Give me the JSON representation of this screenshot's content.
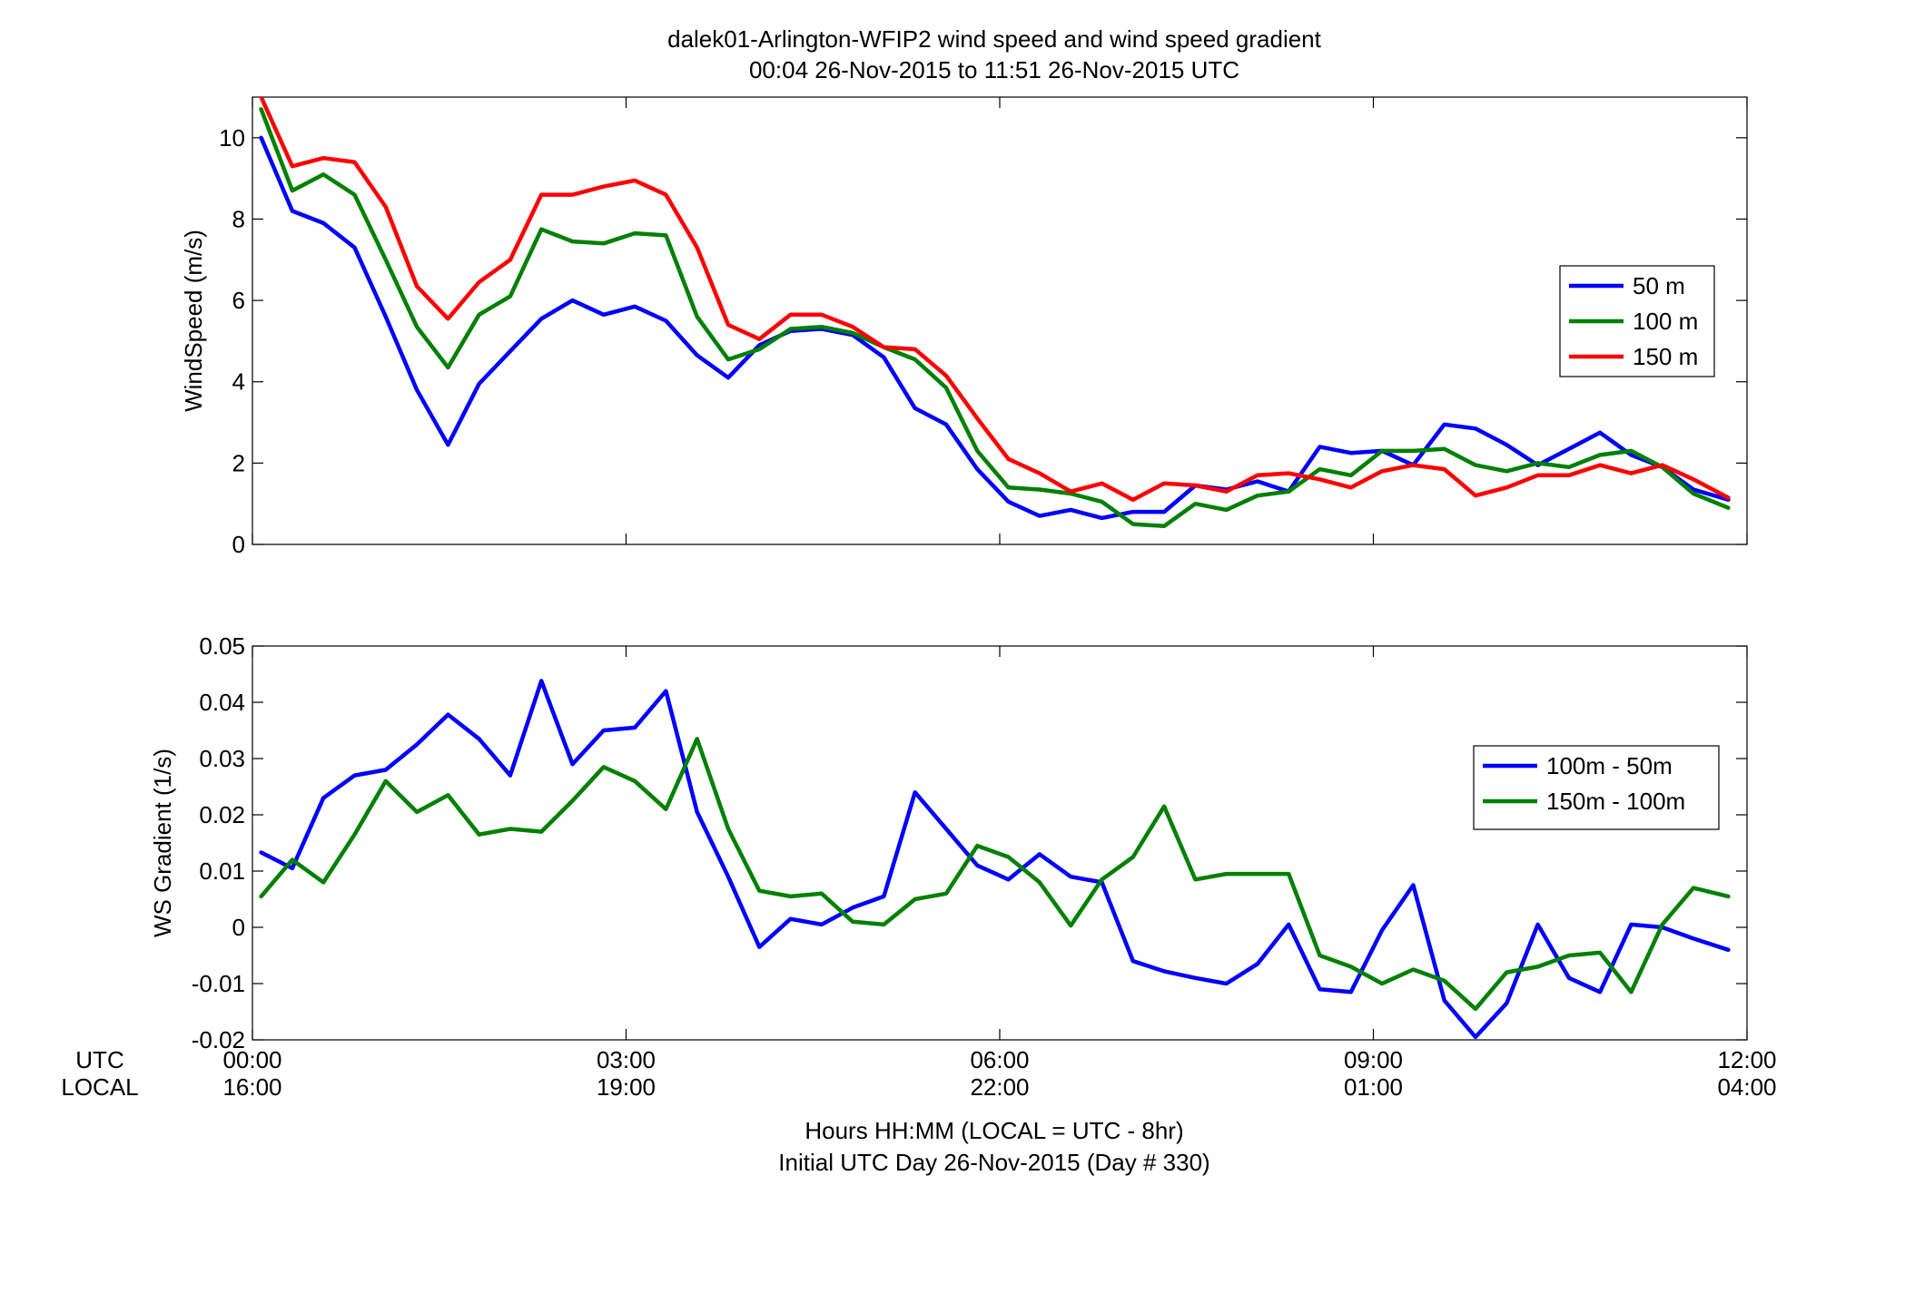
{
  "figure": {
    "title_line1": "dalek01-Arlington-WFIP2  wind speed and wind speed gradient",
    "title_line2": "00:04 26-Nov-2015 to 11:51 26-Nov-2015  UTC",
    "xlabel_line1": "Hours HH:MM  (LOCAL = UTC - 8hr)",
    "xlabel_line2": "Initial UTC Day 26-Nov-2015 (Day # 330)",
    "row_label_utc": "UTC",
    "row_label_local": "LOCAL",
    "x_ticks_utc": [
      "00:00",
      "03:00",
      "06:00",
      "09:00",
      "12:00"
    ],
    "x_ticks_local": [
      "16:00",
      "19:00",
      "22:00",
      "01:00",
      "04:00"
    ]
  },
  "chart_data": [
    {
      "type": "line",
      "title": "",
      "xlabel": "",
      "ylabel": "WindSpeed (m/s)",
      "xlim": [
        0,
        12
      ],
      "ylim": [
        0,
        11
      ],
      "yticks": [
        0,
        2,
        4,
        6,
        8,
        10
      ],
      "ytick_labels": [
        "0",
        "2",
        "4",
        "6",
        "8",
        "10"
      ],
      "grid": false,
      "legend": "right",
      "x": [
        0.07,
        0.32,
        0.57,
        0.82,
        1.07,
        1.32,
        1.57,
        1.82,
        2.07,
        2.32,
        2.57,
        2.82,
        3.07,
        3.32,
        3.57,
        3.82,
        4.07,
        4.32,
        4.57,
        4.82,
        5.07,
        5.32,
        5.57,
        5.82,
        6.07,
        6.32,
        6.57,
        6.82,
        7.07,
        7.32,
        7.57,
        7.82,
        8.07,
        8.32,
        8.57,
        8.82,
        9.07,
        9.32,
        9.57,
        9.82,
        10.07,
        10.32,
        10.57,
        10.82,
        11.07,
        11.32,
        11.57,
        11.85
      ],
      "series": [
        {
          "name": "50 m",
          "color": "#0000ff",
          "values": [
            10.0,
            8.2,
            7.9,
            7.3,
            5.6,
            3.8,
            2.45,
            3.95,
            4.75,
            5.55,
            6.0,
            5.65,
            5.85,
            5.5,
            4.65,
            4.1,
            4.9,
            5.25,
            5.3,
            5.15,
            4.6,
            3.35,
            2.95,
            1.85,
            1.05,
            0.7,
            0.85,
            0.65,
            0.8,
            0.8,
            1.45,
            1.35,
            1.55,
            1.3,
            2.4,
            2.25,
            2.3,
            1.95,
            2.95,
            2.85,
            2.45,
            1.95,
            2.35,
            2.75,
            2.2,
            1.9,
            1.35,
            1.1
          ]
        },
        {
          "name": "100 m",
          "color": "#008000",
          "values": [
            10.7,
            8.7,
            9.1,
            8.6,
            7.0,
            5.35,
            4.35,
            5.65,
            6.1,
            7.75,
            7.45,
            7.4,
            7.65,
            7.6,
            5.6,
            4.55,
            4.8,
            5.3,
            5.35,
            5.2,
            4.85,
            4.55,
            3.85,
            2.3,
            1.4,
            1.35,
            1.25,
            1.05,
            0.5,
            0.45,
            1.0,
            0.85,
            1.2,
            1.3,
            1.85,
            1.7,
            2.3,
            2.3,
            2.35,
            1.95,
            1.8,
            2.0,
            1.9,
            2.2,
            2.3,
            1.9,
            1.25,
            0.9
          ]
        },
        {
          "name": "150 m",
          "color": "#ff0000",
          "values": [
            11.0,
            9.3,
            9.5,
            9.4,
            8.3,
            6.35,
            5.55,
            6.45,
            7.0,
            8.6,
            8.6,
            8.8,
            8.95,
            8.6,
            7.3,
            5.4,
            5.05,
            5.65,
            5.65,
            5.35,
            4.85,
            4.8,
            4.15,
            3.1,
            2.1,
            1.75,
            1.3,
            1.5,
            1.1,
            1.5,
            1.45,
            1.3,
            1.7,
            1.75,
            1.6,
            1.4,
            1.8,
            1.95,
            1.85,
            1.2,
            1.4,
            1.7,
            1.7,
            1.95,
            1.75,
            1.95,
            1.6,
            1.15
          ]
        }
      ]
    },
    {
      "type": "line",
      "title": "",
      "xlabel": "",
      "ylabel": "WS Gradient (1/s)",
      "xlim": [
        0,
        12
      ],
      "ylim": [
        -0.02,
        0.05
      ],
      "yticks": [
        -0.02,
        -0.01,
        0,
        0.01,
        0.02,
        0.03,
        0.04,
        0.05
      ],
      "ytick_labels": [
        "-0.02",
        "-0.01",
        "0",
        "0.01",
        "0.02",
        "0.03",
        "0.04",
        "0.05"
      ],
      "grid": false,
      "legend": "right",
      "x": [
        0.07,
        0.32,
        0.57,
        0.82,
        1.07,
        1.32,
        1.57,
        1.82,
        2.07,
        2.32,
        2.57,
        2.82,
        3.07,
        3.32,
        3.57,
        3.82,
        4.07,
        4.32,
        4.57,
        4.82,
        5.07,
        5.32,
        5.57,
        5.82,
        6.07,
        6.32,
        6.57,
        6.82,
        7.07,
        7.32,
        7.57,
        7.82,
        8.07,
        8.32,
        8.57,
        8.82,
        9.07,
        9.32,
        9.57,
        9.82,
        10.07,
        10.32,
        10.57,
        10.82,
        11.07,
        11.32,
        11.57,
        11.85
      ],
      "series": [
        {
          "name": "100m - 50m",
          "color": "#0000ff",
          "values": [
            0.0133,
            0.0105,
            0.023,
            0.027,
            0.028,
            0.0325,
            0.0378,
            0.0335,
            0.027,
            0.0438,
            0.029,
            0.035,
            0.0355,
            0.042,
            0.0205,
            0.009,
            -0.0035,
            0.0015,
            0.0005,
            0.0035,
            0.0055,
            0.024,
            0.0175,
            0.011,
            0.0085,
            0.013,
            0.009,
            0.008,
            -0.006,
            -0.0078,
            -0.009,
            -0.01,
            -0.0065,
            0.0005,
            -0.011,
            -0.0115,
            -0.0005,
            0.0075,
            -0.013,
            -0.0195,
            -0.0135,
            0.0005,
            -0.009,
            -0.0115,
            0.0005,
            0.0,
            -0.002,
            -0.004
          ]
        },
        {
          "name": "150m - 100m",
          "color": "#008000",
          "values": [
            0.0055,
            0.012,
            0.008,
            0.0165,
            0.026,
            0.0205,
            0.0235,
            0.0165,
            0.0175,
            0.017,
            0.0225,
            0.0285,
            0.026,
            0.021,
            0.0335,
            0.0175,
            0.0065,
            0.0055,
            0.006,
            0.001,
            0.0005,
            0.005,
            0.006,
            0.0145,
            0.0125,
            0.008,
            0.0003,
            0.0085,
            0.0125,
            0.0215,
            0.0085,
            0.0095,
            0.0095,
            0.0095,
            -0.005,
            -0.007,
            -0.01,
            -0.0075,
            -0.0095,
            -0.0145,
            -0.008,
            -0.007,
            -0.005,
            -0.0045,
            -0.0115,
            0.0005,
            0.007,
            0.0055
          ]
        }
      ]
    }
  ]
}
